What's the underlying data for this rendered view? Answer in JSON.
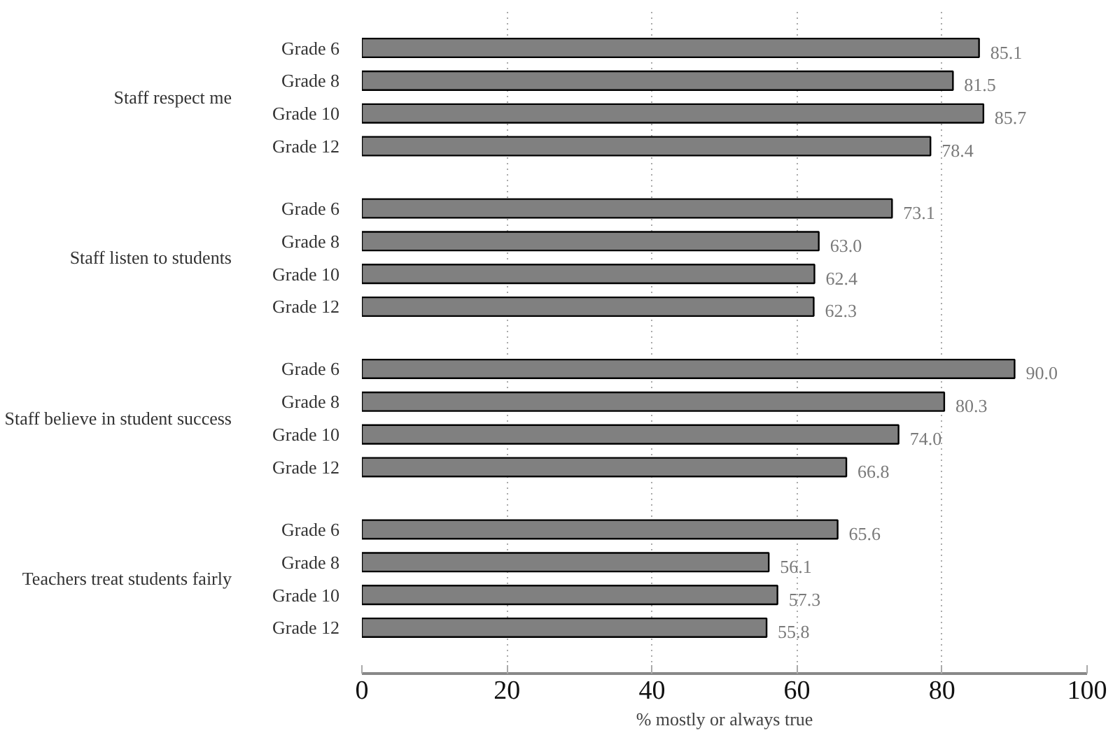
{
  "chart_data": {
    "type": "bar",
    "orientation": "horizontal",
    "categories": [
      "Grade 6",
      "Grade 8",
      "Grade 10",
      "Grade 12",
      "Grade 6",
      "Grade 8",
      "Grade 10",
      "Grade 12",
      "Grade 6",
      "Grade 8",
      "Grade 10",
      "Grade 12",
      "Grade 6",
      "Grade 8",
      "Grade 10",
      "Grade 12"
    ],
    "values": [
      85.1,
      81.5,
      85.7,
      78.4,
      73.1,
      63.0,
      62.4,
      62.3,
      90.0,
      80.3,
      74.0,
      66.8,
      65.6,
      56.1,
      57.3,
      55.8
    ],
    "value_labels": [
      "85.1",
      "81.5",
      "85.7",
      "78.4",
      "73.1",
      "63.0",
      "62.4",
      "62.3",
      "90.0",
      "80.3",
      "74.0",
      "66.8",
      "65.6",
      "56.1",
      "57.3",
      "55.8"
    ],
    "color": "#808080",
    "annotations": [
      "Staff respect me",
      "Staff listen to students",
      "Staff believe in student success",
      "Teachers treat students fairly"
    ],
    "xlabel": "% mostly or always true",
    "xlim": [
      0,
      100
    ],
    "xticks": [
      0,
      20,
      40,
      60,
      80,
      100
    ],
    "grid": "x"
  }
}
